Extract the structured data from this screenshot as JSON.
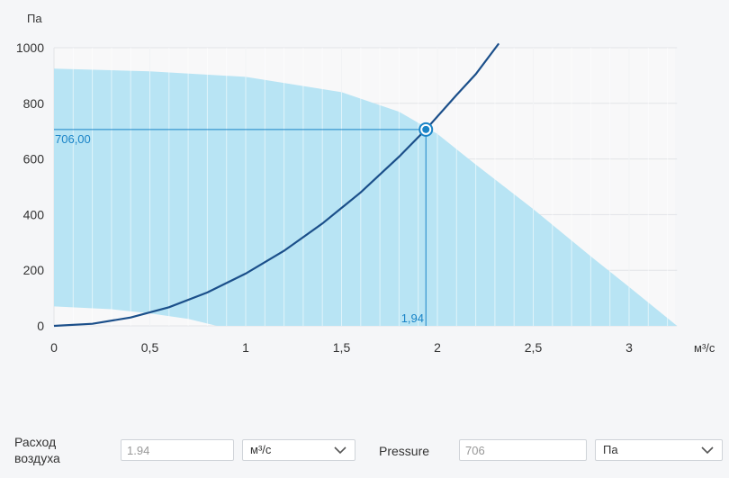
{
  "chart_data": {
    "type": "line",
    "xlabel": "м³/с",
    "ylabel": "Па",
    "xlim": [
      0,
      3.25
    ],
    "ylim": [
      0,
      1000
    ],
    "x_ticks": [
      0,
      0.5,
      1,
      1.5,
      2,
      2.5,
      3
    ],
    "x_tick_labels": [
      "0",
      "0,5",
      "1",
      "1,5",
      "2",
      "2,5",
      "3"
    ],
    "y_ticks": [
      0,
      200,
      400,
      600,
      800,
      1000
    ],
    "y_tick_labels": [
      "0",
      "200",
      "400",
      "600",
      "800",
      "1000"
    ],
    "grid": true,
    "operating_region": {
      "upper": [
        [
          0,
          925
        ],
        [
          0.5,
          915
        ],
        [
          1,
          895
        ],
        [
          1.5,
          840
        ],
        [
          1.8,
          770
        ],
        [
          2.0,
          690
        ],
        [
          2.2,
          580
        ],
        [
          2.5,
          420
        ],
        [
          2.8,
          250
        ],
        [
          3.0,
          140
        ],
        [
          3.25,
          0
        ]
      ],
      "lower": [
        [
          0,
          70
        ],
        [
          0.3,
          60
        ],
        [
          0.5,
          45
        ],
        [
          0.7,
          25
        ],
        [
          0.85,
          0
        ]
      ]
    },
    "system_curve": {
      "x": [
        0,
        0.2,
        0.4,
        0.6,
        0.8,
        1.0,
        1.2,
        1.4,
        1.6,
        1.8,
        1.94,
        2.1,
        2.2,
        2.32
      ],
      "y": [
        0,
        7.5,
        30,
        67,
        120,
        188,
        270,
        368,
        480,
        608,
        706,
        830,
        905,
        1015
      ]
    },
    "operating_point": {
      "x": 1.94,
      "y": 706,
      "x_label": "1,94",
      "y_label": "706,00"
    },
    "colors": {
      "region": "#b8e4f4",
      "curve": "#1b4f8a",
      "marker": "#1a84c7",
      "grid": "#e2e4e8"
    }
  },
  "form": {
    "flow_label": "Расход воздуха",
    "flow_value": "1.94",
    "flow_unit": "м³/с",
    "pressure_label": "Pressure",
    "pressure_value": "706",
    "pressure_unit": "Па"
  }
}
